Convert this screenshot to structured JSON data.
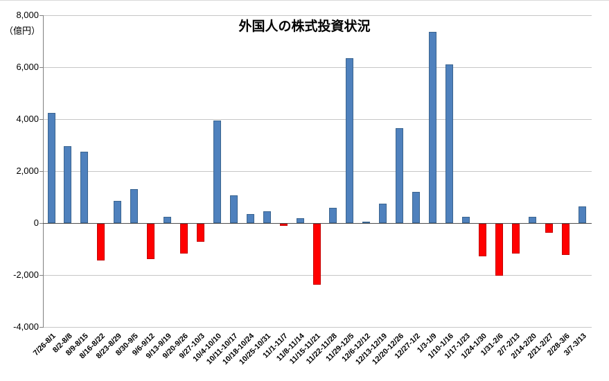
{
  "chart": {
    "title": "外国人の株式投資状況",
    "unit_label": "（億円）"
  },
  "chart_data": {
    "type": "bar",
    "title": "外国人の株式投資状況",
    "xlabel": "",
    "ylabel": "（億円）",
    "ylim": [
      -4000,
      8000
    ],
    "ytick_step": 2000,
    "grid": true,
    "legend": "none",
    "positive_color": "#4f81bd",
    "negative_color": "#ff0000",
    "categories": [
      "7/26-8/1",
      "8/2-8/8",
      "8/9-8/15",
      "8/16-8/22",
      "8/23-8/29",
      "8/30-9/5",
      "9/6-9/12",
      "9/13-9/19",
      "9/20-9/26",
      "9/27-10/3",
      "10/4-10/10",
      "10/11-10/17",
      "10/18-10/24",
      "10/25-10/31",
      "11/1-11/7",
      "11/8-11/14",
      "11/15-11/21",
      "11/22-11/28",
      "11/29-12/5",
      "12/6-12/12",
      "12/13-12/19",
      "12/20-12/26",
      "12/27-1/2",
      "1/3-1/9",
      "1/10-1/16",
      "1/17-1/23",
      "1/24-1/30",
      "1/31-2/6",
      "2/7-2/13",
      "2/14-2/20",
      "2/21-2/27",
      "2/28-3/6",
      "3/7-3/13"
    ],
    "values": [
      4250,
      2950,
      2750,
      -1400,
      850,
      1300,
      -1350,
      230,
      -1150,
      -700,
      3950,
      1070,
      350,
      450,
      -80,
      200,
      -2350,
      600,
      6350,
      50,
      750,
      3650,
      1200,
      7350,
      6100,
      250,
      -1250,
      -2000,
      -1150,
      250,
      -350,
      -1200,
      650
    ]
  }
}
